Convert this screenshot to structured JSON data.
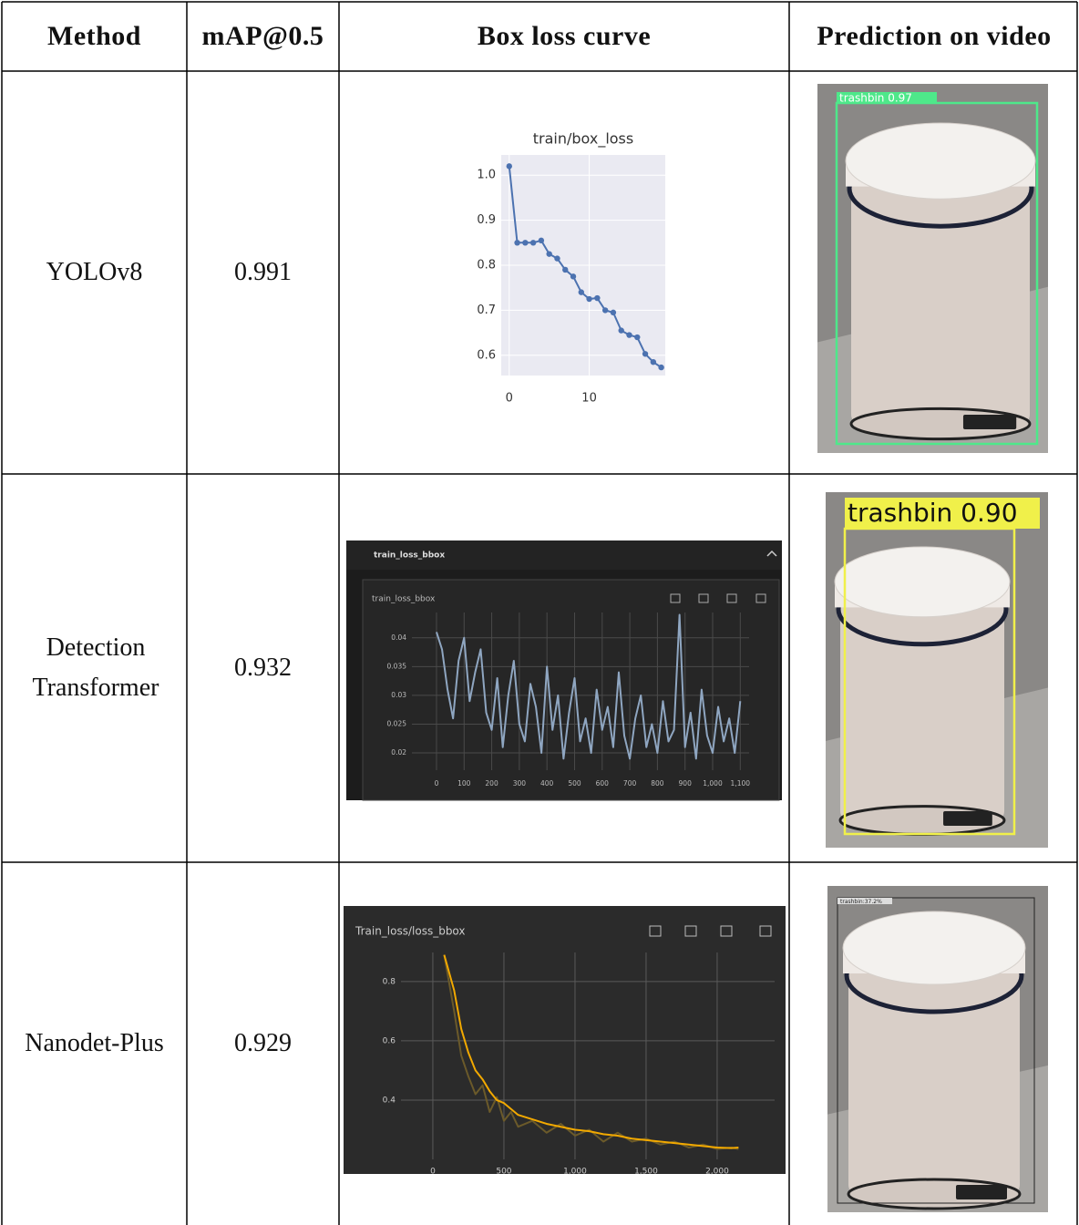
{
  "table": {
    "header": [
      "Method",
      "mAP@0.5",
      "Box loss curve",
      "Prediction on video"
    ],
    "rows": [
      {
        "method": "YOLOv8",
        "map": 0.991,
        "curve": {
          "type": "line",
          "title": "train/box_loss",
          "background": "#eaeaf2",
          "grid": true,
          "grid_color": "#ffffff",
          "x": [
            0,
            1,
            2,
            3,
            4,
            5,
            6,
            7,
            8,
            9,
            10,
            11,
            12,
            13,
            14,
            15,
            16,
            17,
            18,
            19
          ],
          "series": [
            {
              "color": "#4c72b0",
              "markers": true,
              "values": [
                1.02,
                0.85,
                0.85,
                0.85,
                0.855,
                0.825,
                0.815,
                0.79,
                0.775,
                0.74,
                0.725,
                0.727,
                0.7,
                0.695,
                0.655,
                0.645,
                0.64,
                0.603,
                0.585,
                0.573
              ]
            }
          ],
          "xlim": [
            -1,
            19.5
          ],
          "ylim": [
            0.555,
            1.045
          ],
          "xticks": [
            0,
            10
          ],
          "yticks": [
            {
              "value": 1,
              "label": "1.0"
            },
            0.9,
            0.8,
            0.7,
            0.6
          ]
        },
        "prediction": {
          "label": "trashbin 0.97",
          "box_color": "#4ee88a"
        }
      },
      {
        "method": "Detection Transformer",
        "map": 0.932,
        "curve": {
          "type": "line",
          "panel_title": "train_loss_bbox",
          "title": "train_loss_bbox",
          "background": "#262626",
          "grid": true,
          "grid_color": "#4a4a4a",
          "x": [
            0,
            20,
            40,
            60,
            80,
            100,
            120,
            140,
            160,
            180,
            200,
            220,
            240,
            260,
            280,
            300,
            320,
            340,
            360,
            380,
            400,
            420,
            440,
            460,
            480,
            500,
            520,
            540,
            560,
            580,
            600,
            620,
            640,
            660,
            680,
            700,
            720,
            740,
            760,
            780,
            800,
            820,
            840,
            860,
            880,
            900,
            920,
            940,
            960,
            980,
            1000,
            1020,
            1040,
            1060,
            1080,
            1100
          ],
          "series": [
            {
              "color": "#8fa6c1",
              "markers": false,
              "values": [
                0.041,
                0.038,
                0.031,
                0.026,
                0.036,
                0.04,
                0.029,
                0.034,
                0.038,
                0.027,
                0.024,
                0.033,
                0.021,
                0.03,
                0.036,
                0.025,
                0.022,
                0.032,
                0.028,
                0.02,
                0.035,
                0.024,
                0.03,
                0.019,
                0.027,
                0.033,
                0.022,
                0.026,
                0.02,
                0.031,
                0.024,
                0.028,
                0.021,
                0.034,
                0.023,
                0.019,
                0.026,
                0.03,
                0.021,
                0.025,
                0.02,
                0.029,
                0.022,
                0.024,
                0.044,
                0.021,
                0.027,
                0.019,
                0.031,
                0.023,
                0.02,
                0.028,
                0.022,
                0.026,
                0.02,
                0.029
              ]
            }
          ],
          "xlim": [
            -89,
            1132
          ],
          "ylim": [
            0.017,
            0.0444
          ],
          "xticks": [
            0,
            100,
            200,
            300,
            400,
            500,
            600,
            700,
            800,
            900,
            {
              "value": 1000,
              "label": "1,000"
            },
            {
              "value": 1100,
              "label": "1,100"
            }
          ],
          "yticks": [
            0.04,
            0.035,
            0.03,
            0.025,
            0.02
          ]
        },
        "prediction": {
          "label": "trashbin 0.90",
          "box_color": "#f0f04a"
        }
      },
      {
        "method": "Nanodet-Plus",
        "map": 0.929,
        "curve": {
          "type": "line",
          "title": "Train_loss/loss_bbox",
          "background": "#2b2b2b",
          "grid": true,
          "grid_color": "#5a5a5a",
          "x": [
            80,
            150,
            200,
            250,
            300,
            350,
            400,
            450,
            500,
            550,
            600,
            700,
            800,
            900,
            1000,
            1100,
            1200,
            1300,
            1400,
            1500,
            1600,
            1700,
            1800,
            1900,
            2000,
            2100,
            2150
          ],
          "series": [
            {
              "color": "#6b5a2a",
              "markers": false,
              "values": [
                0.89,
                0.7,
                0.55,
                0.48,
                0.42,
                0.45,
                0.36,
                0.41,
                0.33,
                0.36,
                0.31,
                0.33,
                0.29,
                0.32,
                0.28,
                0.3,
                0.26,
                0.29,
                0.26,
                0.27,
                0.25,
                0.26,
                0.24,
                0.25,
                0.235,
                0.24,
                0.235
              ]
            },
            {
              "color": "#f2a900",
              "markers": false,
              "values": [
                0.89,
                0.77,
                0.64,
                0.56,
                0.5,
                0.47,
                0.43,
                0.4,
                0.39,
                0.37,
                0.35,
                0.335,
                0.32,
                0.31,
                0.3,
                0.295,
                0.285,
                0.28,
                0.27,
                0.265,
                0.26,
                0.255,
                0.25,
                0.245,
                0.24,
                0.238,
                0.24
              ]
            }
          ],
          "xlim": [
            -224,
            2404
          ],
          "ylim": [
            0.2,
            0.898
          ],
          "xticks": [
            0,
            500,
            {
              "value": 1000,
              "label": "1,000"
            },
            {
              "value": 1500,
              "label": "1,500"
            },
            {
              "value": 2000,
              "label": "2,000"
            }
          ],
          "yticks": [
            0.8,
            0.6,
            0.4
          ]
        },
        "prediction": {
          "label": "trashbin:37.2%",
          "box_color": "#222222"
        }
      }
    ]
  }
}
